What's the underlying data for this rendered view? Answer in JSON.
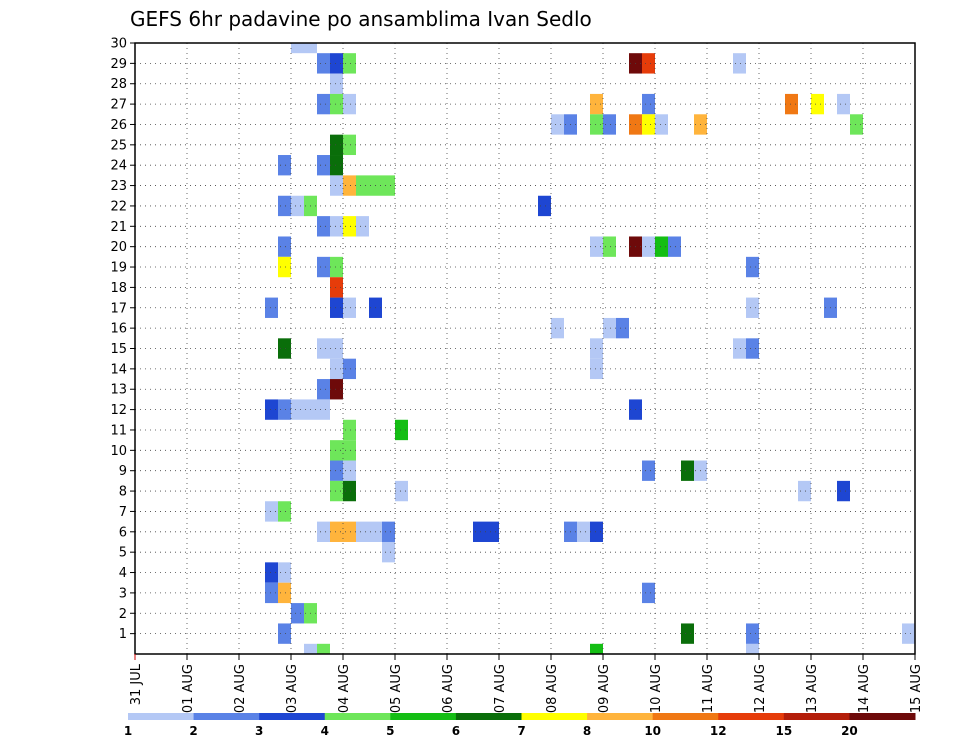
{
  "chart_data": {
    "type": "heatmap",
    "title": "GEFS 6hr padavine po ansamblima Ivan Sedlo",
    "xlabel": "",
    "ylabel": "",
    "x_tick_labels": [
      "31 JUL",
      "01 AUG",
      "02 AUG",
      "03 AUG",
      "04 AUG",
      "05 AUG",
      "06 AUG",
      "07 AUG",
      "08 AUG",
      "09 AUG",
      "10 AUG",
      "11 AUG",
      "12 AUG",
      "13 AUG",
      "14 AUG",
      "15 AUG"
    ],
    "y_tick_labels": [
      "1",
      "2",
      "3",
      "4",
      "5",
      "6",
      "7",
      "8",
      "9",
      "10",
      "11",
      "12",
      "13",
      "14",
      "15",
      "16",
      "17",
      "18",
      "19",
      "20",
      "21",
      "22",
      "23",
      "24",
      "25",
      "26",
      "27",
      "28",
      "29",
      "30"
    ],
    "xlim": [
      0,
      15
    ],
    "ylim": [
      0,
      30
    ],
    "grid": true,
    "x_unit": "days since 31 JUL 00Z",
    "cell_width_days": 0.25,
    "levels": [
      1,
      2,
      3,
      4,
      5,
      6,
      7,
      8,
      10,
      12,
      15,
      20
    ],
    "colors": [
      "#b4c8f5",
      "#5a82e6",
      "#1e46d2",
      "#6ee65a",
      "#14be14",
      "#0a6e0a",
      "#ffff00",
      "#ffb43c",
      "#f07814",
      "#e63c0a",
      "#b41e0a",
      "#6e0a0a"
    ],
    "cells": [
      {
        "x": 3.0,
        "y": 30,
        "c": 0
      },
      {
        "x": 3.25,
        "y": 30,
        "c": 0
      },
      {
        "x": 3.25,
        "y": 0,
        "c": 0
      },
      {
        "x": 3.5,
        "y": 0,
        "c": 3
      },
      {
        "x": 8.75,
        "y": 0,
        "c": 4
      },
      {
        "x": 11.75,
        "y": 0,
        "c": 0
      },
      {
        "x": 3.5,
        "y": 29,
        "c": 1
      },
      {
        "x": 3.75,
        "y": 29,
        "c": 2
      },
      {
        "x": 4.0,
        "y": 29,
        "c": 3
      },
      {
        "x": 9.5,
        "y": 29,
        "c": 11
      },
      {
        "x": 9.75,
        "y": 29,
        "c": 9
      },
      {
        "x": 11.5,
        "y": 29,
        "c": 0
      },
      {
        "x": 3.75,
        "y": 28,
        "c": 0
      },
      {
        "x": 3.5,
        "y": 27,
        "c": 1
      },
      {
        "x": 3.75,
        "y": 27,
        "c": 3
      },
      {
        "x": 4.0,
        "y": 27,
        "c": 0
      },
      {
        "x": 8.75,
        "y": 27,
        "c": 7
      },
      {
        "x": 9.75,
        "y": 27,
        "c": 1
      },
      {
        "x": 12.5,
        "y": 27,
        "c": 8
      },
      {
        "x": 13.0,
        "y": 27,
        "c": 6
      },
      {
        "x": 13.5,
        "y": 27,
        "c": 0
      },
      {
        "x": 8.0,
        "y": 26,
        "c": 0
      },
      {
        "x": 8.25,
        "y": 26,
        "c": 1
      },
      {
        "x": 8.75,
        "y": 26,
        "c": 3
      },
      {
        "x": 9.0,
        "y": 26,
        "c": 1
      },
      {
        "x": 9.5,
        "y": 26,
        "c": 8
      },
      {
        "x": 9.75,
        "y": 26,
        "c": 6
      },
      {
        "x": 10.0,
        "y": 26,
        "c": 0
      },
      {
        "x": 10.75,
        "y": 26,
        "c": 7
      },
      {
        "x": 13.75,
        "y": 26,
        "c": 3
      },
      {
        "x": 3.75,
        "y": 25,
        "c": 5
      },
      {
        "x": 4.0,
        "y": 25,
        "c": 3
      },
      {
        "x": 2.75,
        "y": 24,
        "c": 1
      },
      {
        "x": 3.5,
        "y": 24,
        "c": 1
      },
      {
        "x": 3.75,
        "y": 24,
        "c": 5
      },
      {
        "x": 3.75,
        "y": 23,
        "c": 0
      },
      {
        "x": 4.0,
        "y": 23,
        "c": 7
      },
      {
        "x": 4.25,
        "y": 23,
        "c": 3
      },
      {
        "x": 4.5,
        "y": 23,
        "c": 3
      },
      {
        "x": 4.75,
        "y": 23,
        "c": 3
      },
      {
        "x": 2.75,
        "y": 22,
        "c": 1
      },
      {
        "x": 3.0,
        "y": 22,
        "c": 0
      },
      {
        "x": 3.25,
        "y": 22,
        "c": 3
      },
      {
        "x": 7.75,
        "y": 22,
        "c": 2
      },
      {
        "x": 3.5,
        "y": 21,
        "c": 1
      },
      {
        "x": 3.75,
        "y": 21,
        "c": 0
      },
      {
        "x": 4.0,
        "y": 21,
        "c": 6
      },
      {
        "x": 4.25,
        "y": 21,
        "c": 0
      },
      {
        "x": 2.75,
        "y": 20,
        "c": 1
      },
      {
        "x": 8.75,
        "y": 20,
        "c": 0
      },
      {
        "x": 9.0,
        "y": 20,
        "c": 3
      },
      {
        "x": 9.5,
        "y": 20,
        "c": 11
      },
      {
        "x": 9.75,
        "y": 20,
        "c": 0
      },
      {
        "x": 10.0,
        "y": 20,
        "c": 4
      },
      {
        "x": 10.25,
        "y": 20,
        "c": 1
      },
      {
        "x": 2.75,
        "y": 19,
        "c": 6
      },
      {
        "x": 3.5,
        "y": 19,
        "c": 1
      },
      {
        "x": 3.75,
        "y": 19,
        "c": 3
      },
      {
        "x": 11.75,
        "y": 19,
        "c": 1
      },
      {
        "x": 3.75,
        "y": 18,
        "c": 9
      },
      {
        "x": 2.5,
        "y": 17,
        "c": 1
      },
      {
        "x": 3.75,
        "y": 17,
        "c": 2
      },
      {
        "x": 4.0,
        "y": 17,
        "c": 0
      },
      {
        "x": 4.5,
        "y": 17,
        "c": 2
      },
      {
        "x": 11.75,
        "y": 17,
        "c": 0
      },
      {
        "x": 13.25,
        "y": 17,
        "c": 1
      },
      {
        "x": 8.0,
        "y": 16,
        "c": 0
      },
      {
        "x": 9.0,
        "y": 16,
        "c": 0
      },
      {
        "x": 9.25,
        "y": 16,
        "c": 1
      },
      {
        "x": 2.75,
        "y": 15,
        "c": 5
      },
      {
        "x": 3.5,
        "y": 15,
        "c": 0
      },
      {
        "x": 3.75,
        "y": 15,
        "c": 0
      },
      {
        "x": 8.75,
        "y": 15,
        "c": 0
      },
      {
        "x": 11.5,
        "y": 15,
        "c": 0
      },
      {
        "x": 11.75,
        "y": 15,
        "c": 1
      },
      {
        "x": 3.75,
        "y": 14,
        "c": 0
      },
      {
        "x": 4.0,
        "y": 14,
        "c": 1
      },
      {
        "x": 8.75,
        "y": 14,
        "c": 0
      },
      {
        "x": 3.5,
        "y": 13,
        "c": 1
      },
      {
        "x": 3.75,
        "y": 13,
        "c": 11
      },
      {
        "x": 2.5,
        "y": 12,
        "c": 2
      },
      {
        "x": 2.75,
        "y": 12,
        "c": 1
      },
      {
        "x": 3.0,
        "y": 12,
        "c": 0
      },
      {
        "x": 3.25,
        "y": 12,
        "c": 0
      },
      {
        "x": 3.5,
        "y": 12,
        "c": 0
      },
      {
        "x": 9.5,
        "y": 12,
        "c": 2
      },
      {
        "x": 4.0,
        "y": 11,
        "c": 3
      },
      {
        "x": 5.0,
        "y": 11,
        "c": 4
      },
      {
        "x": 3.75,
        "y": 10,
        "c": 3
      },
      {
        "x": 4.0,
        "y": 10,
        "c": 3
      },
      {
        "x": 3.75,
        "y": 9,
        "c": 1
      },
      {
        "x": 4.0,
        "y": 9,
        "c": 0
      },
      {
        "x": 9.75,
        "y": 9,
        "c": 1
      },
      {
        "x": 10.5,
        "y": 9,
        "c": 5
      },
      {
        "x": 10.75,
        "y": 9,
        "c": 0
      },
      {
        "x": 3.75,
        "y": 8,
        "c": 3
      },
      {
        "x": 4.0,
        "y": 8,
        "c": 5
      },
      {
        "x": 5.0,
        "y": 8,
        "c": 0
      },
      {
        "x": 12.75,
        "y": 8,
        "c": 0
      },
      {
        "x": 13.5,
        "y": 8,
        "c": 2
      },
      {
        "x": 2.5,
        "y": 7,
        "c": 0
      },
      {
        "x": 2.75,
        "y": 7,
        "c": 3
      },
      {
        "x": 3.5,
        "y": 6,
        "c": 0
      },
      {
        "x": 3.75,
        "y": 6,
        "c": 7
      },
      {
        "x": 4.0,
        "y": 6,
        "c": 7
      },
      {
        "x": 4.25,
        "y": 6,
        "c": 0
      },
      {
        "x": 4.5,
        "y": 6,
        "c": 0
      },
      {
        "x": 4.75,
        "y": 6,
        "c": 1
      },
      {
        "x": 6.5,
        "y": 6,
        "c": 2
      },
      {
        "x": 6.75,
        "y": 6,
        "c": 2
      },
      {
        "x": 8.25,
        "y": 6,
        "c": 1
      },
      {
        "x": 8.5,
        "y": 6,
        "c": 0
      },
      {
        "x": 8.75,
        "y": 6,
        "c": 2
      },
      {
        "x": 2.5,
        "y": 4,
        "c": 2
      },
      {
        "x": 2.75,
        "y": 4,
        "c": 0
      },
      {
        "x": 4.75,
        "y": 5,
        "c": 0
      },
      {
        "x": 2.5,
        "y": 3,
        "c": 1
      },
      {
        "x": 2.75,
        "y": 3,
        "c": 7
      },
      {
        "x": 9.75,
        "y": 3,
        "c": 1
      },
      {
        "x": 3.0,
        "y": 2,
        "c": 1
      },
      {
        "x": 3.25,
        "y": 2,
        "c": 3
      },
      {
        "x": 2.75,
        "y": 1,
        "c": 1
      },
      {
        "x": 10.5,
        "y": 1,
        "c": 5
      },
      {
        "x": 11.75,
        "y": 1,
        "c": 1
      },
      {
        "x": 14.75,
        "y": 1,
        "c": 0
      }
    ]
  }
}
